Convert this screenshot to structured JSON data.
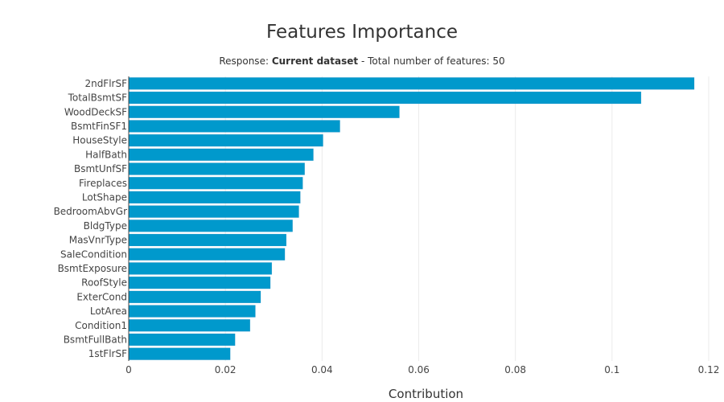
{
  "chart_data": {
    "type": "bar",
    "orientation": "horizontal",
    "title": "Features Importance",
    "subtitle": {
      "prefix": "Response: ",
      "dataset": "Current dataset",
      "suffix": " - Total number of features: 50"
    },
    "xlabel": "Contribution",
    "ylabel": "",
    "xlim": [
      0,
      0.12
    ],
    "x_ticks": [
      0,
      0.02,
      0.04,
      0.06,
      0.08,
      0.1,
      0.12
    ],
    "x_tick_labels": [
      "0",
      "0.02",
      "0.04",
      "0.06",
      "0.08",
      "0.1",
      "0.12"
    ],
    "grid": true,
    "bar_color": "#0099cc",
    "categories": [
      "2ndFlrSF",
      "TotalBsmtSF",
      "WoodDeckSF",
      "BsmtFinSF1",
      "HouseStyle",
      "HalfBath",
      "BsmtUnfSF",
      "Fireplaces",
      "LotShape",
      "BedroomAbvGr",
      "BldgType",
      "MasVnrType",
      "SaleCondition",
      "BsmtExposure",
      "RoofStyle",
      "ExterCond",
      "LotArea",
      "Condition1",
      "BsmtFullBath",
      "1stFlrSF"
    ],
    "values": [
      0.117,
      0.106,
      0.056,
      0.0437,
      0.0402,
      0.0382,
      0.0364,
      0.036,
      0.0355,
      0.0352,
      0.0339,
      0.0326,
      0.0323,
      0.0296,
      0.0293,
      0.0273,
      0.0262,
      0.0251,
      0.022,
      0.021
    ]
  }
}
